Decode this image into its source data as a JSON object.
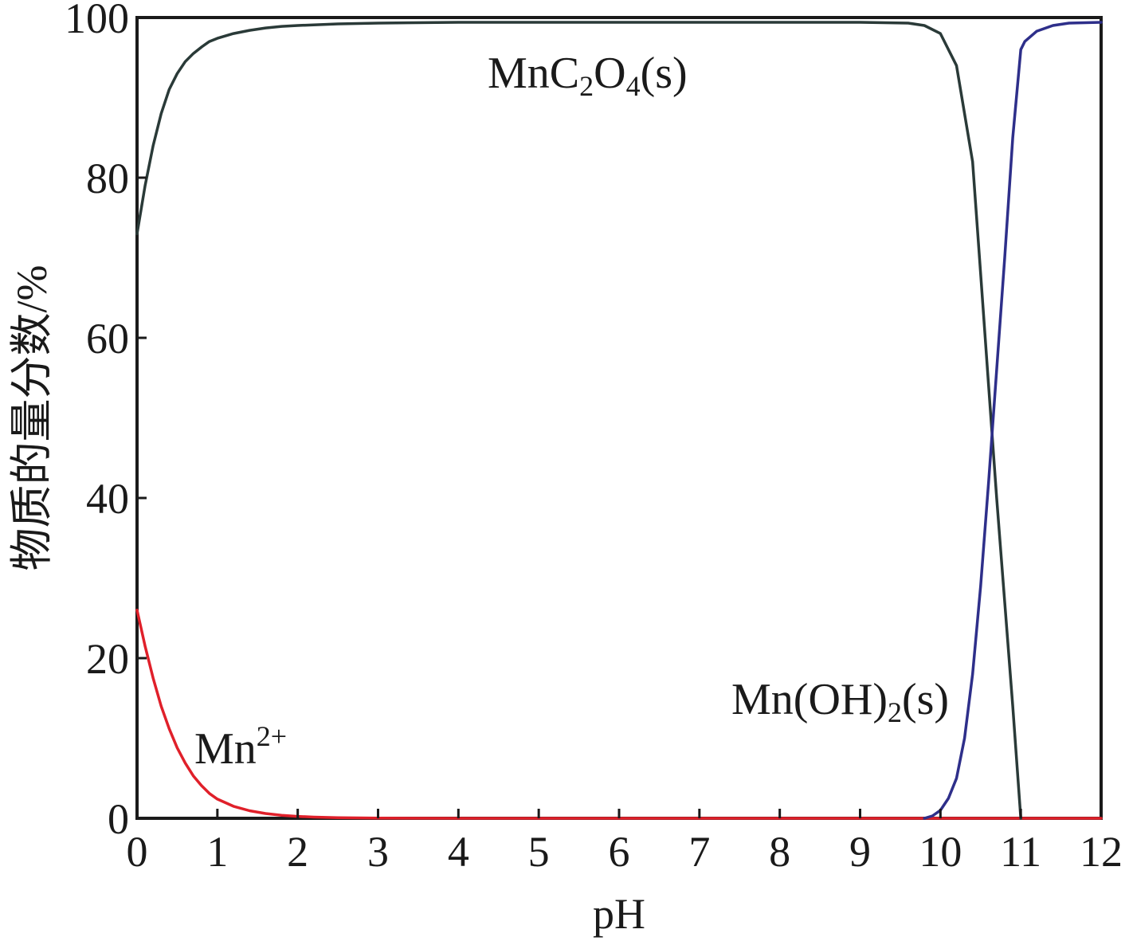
{
  "chart_data": {
    "type": "line",
    "xlabel": "pH",
    "ylabel": "物质的量分数/%",
    "xlim": [
      0,
      12
    ],
    "ylim": [
      0,
      100
    ],
    "xticks": [
      "0",
      "1",
      "2",
      "3",
      "4",
      "5",
      "6",
      "7",
      "8",
      "9",
      "10",
      "11",
      "12"
    ],
    "yticks": [
      "0",
      "20",
      "40",
      "60",
      "80",
      "100"
    ],
    "grid": false,
    "series": [
      {
        "name": "Mn2+",
        "color": "#e0202a",
        "label_parts": [
          {
            "t": "Mn"
          },
          {
            "t": "2+",
            "sup": true
          }
        ],
        "x": [
          0,
          0.1,
          0.2,
          0.3,
          0.4,
          0.5,
          0.6,
          0.7,
          0.8,
          0.9,
          1.0,
          1.2,
          1.4,
          1.6,
          1.8,
          2.0,
          2.2,
          2.5,
          3.0,
          4.0,
          5.0,
          6.0,
          7.0,
          8.0,
          9.0,
          10.0,
          11.0,
          12.0
        ],
        "y": [
          26,
          21.5,
          17.5,
          14,
          11.2,
          8.8,
          6.9,
          5.3,
          4.1,
          3.1,
          2.4,
          1.5,
          0.95,
          0.6,
          0.38,
          0.24,
          0.15,
          0.07,
          0.02,
          0,
          0,
          0,
          0,
          0,
          0,
          0,
          0,
          0
        ]
      },
      {
        "name": "MnC2O4(s)",
        "color": "#2a3a38",
        "label_parts": [
          {
            "t": "MnC"
          },
          {
            "t": "2",
            "sub": true
          },
          {
            "t": "O"
          },
          {
            "t": "4",
            "sub": true
          },
          {
            "t": "(s)"
          }
        ],
        "x": [
          0,
          0.1,
          0.2,
          0.3,
          0.4,
          0.5,
          0.6,
          0.7,
          0.8,
          0.9,
          1.0,
          1.2,
          1.4,
          1.6,
          1.8,
          2.0,
          2.5,
          3.0,
          4.0,
          5.0,
          6.0,
          7.0,
          8.0,
          9.0,
          9.6,
          9.8,
          10.0,
          10.2,
          10.4,
          10.5,
          10.6,
          10.7,
          10.8,
          10.9,
          11.0
        ],
        "y": [
          73,
          79,
          84,
          88,
          91,
          93,
          94.5,
          95.5,
          96.3,
          97,
          97.4,
          98,
          98.4,
          98.7,
          98.9,
          99,
          99.2,
          99.3,
          99.4,
          99.4,
          99.4,
          99.4,
          99.4,
          99.4,
          99.3,
          99,
          98,
          94,
          82,
          68,
          54,
          40,
          27,
          14,
          0
        ]
      },
      {
        "name": "Mn(OH)2(s)",
        "color": "#2e2f8a",
        "label_parts": [
          {
            "t": "Mn(OH)"
          },
          {
            "t": "2",
            "sub": true
          },
          {
            "t": "(s)"
          }
        ],
        "x": [
          9.8,
          9.9,
          10.0,
          10.1,
          10.2,
          10.3,
          10.4,
          10.5,
          10.6,
          10.7,
          10.8,
          10.9,
          11.0,
          11.05,
          11.2,
          11.4,
          11.6,
          12.0
        ],
        "y": [
          0,
          0.3,
          1,
          2.5,
          5,
          10,
          18,
          29,
          42,
          56,
          70,
          85,
          96,
          97,
          98.3,
          99,
          99.3,
          99.4
        ]
      }
    ]
  }
}
